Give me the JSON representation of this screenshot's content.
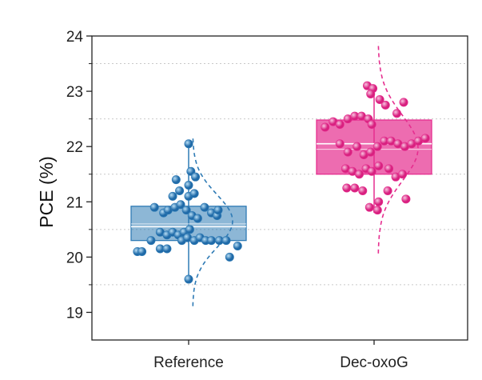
{
  "chart_data": {
    "type": "box",
    "title": "",
    "xlabel": "",
    "ylabel": "PCE (%)",
    "ylim": [
      18.5,
      24
    ],
    "yticks": [
      19,
      20,
      21,
      22,
      23,
      24
    ],
    "ytick_labels": [
      "19",
      "20",
      "21",
      "22",
      "23",
      "24"
    ],
    "grid": "horizontal dotted lines at minor ticks",
    "categories": [
      "Reference",
      "Dec-oxoG"
    ],
    "colors": {
      "Reference": "#2f7bb5",
      "Dec-oxoG": "#e62e8f"
    },
    "series": [
      {
        "category": "Reference",
        "box": {
          "min": 19.6,
          "q1": 20.3,
          "median": 20.55,
          "mean": 20.6,
          "q3": 20.92,
          "max": 22.05
        },
        "points": [
          {
            "x": -0.45,
            "y": 20.1
          },
          {
            "x": -0.41,
            "y": 20.1
          },
          {
            "x": -0.33,
            "y": 20.3
          },
          {
            "x": -0.25,
            "y": 20.15
          },
          {
            "x": -0.19,
            "y": 20.15
          },
          {
            "x": -0.3,
            "y": 20.9
          },
          {
            "x": -0.22,
            "y": 20.8
          },
          {
            "x": -0.18,
            "y": 20.85
          },
          {
            "x": -0.12,
            "y": 20.9
          },
          {
            "x": -0.07,
            "y": 20.95
          },
          {
            "x": -0.02,
            "y": 20.85
          },
          {
            "x": 0.03,
            "y": 20.75
          },
          {
            "x": 0.08,
            "y": 20.7
          },
          {
            "x": 0.14,
            "y": 20.9
          },
          {
            "x": 0.2,
            "y": 20.8
          },
          {
            "x": -0.25,
            "y": 20.45
          },
          {
            "x": -0.19,
            "y": 20.4
          },
          {
            "x": -0.14,
            "y": 20.45
          },
          {
            "x": -0.09,
            "y": 20.4
          },
          {
            "x": -0.04,
            "y": 20.45
          },
          {
            "x": 0.01,
            "y": 20.5
          },
          {
            "x": -0.06,
            "y": 20.3
          },
          {
            "x": -0.01,
            "y": 20.35
          },
          {
            "x": 0.05,
            "y": 20.3
          },
          {
            "x": 0.1,
            "y": 20.35
          },
          {
            "x": 0.15,
            "y": 20.3
          },
          {
            "x": 0.2,
            "y": 20.3
          },
          {
            "x": 0.27,
            "y": 20.3
          },
          {
            "x": 0.33,
            "y": 20.3
          },
          {
            "x": 0.36,
            "y": 20.0
          },
          {
            "x": 0.43,
            "y": 20.2
          },
          {
            "x": -0.14,
            "y": 21.1
          },
          {
            "x": -0.08,
            "y": 21.2
          },
          {
            "x": 0.0,
            "y": 21.1
          },
          {
            "x": 0.05,
            "y": 21.15
          },
          {
            "x": -0.11,
            "y": 21.4
          },
          {
            "x": 0.02,
            "y": 21.55
          },
          {
            "x": 0.06,
            "y": 21.45
          },
          {
            "x": 0.0,
            "y": 21.3
          },
          {
            "x": 0.0,
            "y": 22.05
          },
          {
            "x": 0.0,
            "y": 19.6
          },
          {
            "x": 0.25,
            "y": 20.75
          },
          {
            "x": 0.26,
            "y": 20.85
          }
        ]
      },
      {
        "category": "Dec-oxoG",
        "box": {
          "min": 20.8,
          "q1": 21.5,
          "median": 22.05,
          "mean": 21.95,
          "q3": 22.48,
          "max": 23.1
        },
        "points": [
          {
            "x": -0.43,
            "y": 22.35
          },
          {
            "x": -0.36,
            "y": 22.45
          },
          {
            "x": -0.3,
            "y": 22.4
          },
          {
            "x": -0.23,
            "y": 22.5
          },
          {
            "x": -0.17,
            "y": 22.55
          },
          {
            "x": -0.11,
            "y": 22.55
          },
          {
            "x": -0.05,
            "y": 22.5
          },
          {
            "x": -0.02,
            "y": 22.4
          },
          {
            "x": -0.3,
            "y": 22.05
          },
          {
            "x": -0.23,
            "y": 21.9
          },
          {
            "x": -0.15,
            "y": 22.0
          },
          {
            "x": -0.09,
            "y": 21.85
          },
          {
            "x": -0.03,
            "y": 21.9
          },
          {
            "x": 0.03,
            "y": 22.0
          },
          {
            "x": 0.09,
            "y": 22.1
          },
          {
            "x": 0.15,
            "y": 22.1
          },
          {
            "x": 0.21,
            "y": 22.05
          },
          {
            "x": 0.27,
            "y": 22.0
          },
          {
            "x": 0.33,
            "y": 22.05
          },
          {
            "x": 0.39,
            "y": 22.1
          },
          {
            "x": 0.45,
            "y": 22.15
          },
          {
            "x": -0.25,
            "y": 21.6
          },
          {
            "x": -0.19,
            "y": 21.55
          },
          {
            "x": -0.13,
            "y": 21.5
          },
          {
            "x": -0.07,
            "y": 21.6
          },
          {
            "x": -0.02,
            "y": 21.55
          },
          {
            "x": 0.04,
            "y": 21.65
          },
          {
            "x": 0.13,
            "y": 21.6
          },
          {
            "x": 0.19,
            "y": 21.45
          },
          {
            "x": 0.25,
            "y": 21.5
          },
          {
            "x": -0.24,
            "y": 21.25
          },
          {
            "x": -0.17,
            "y": 21.25
          },
          {
            "x": -0.1,
            "y": 21.2
          },
          {
            "x": 0.04,
            "y": 21.0
          },
          {
            "x": 0.12,
            "y": 21.2
          },
          {
            "x": -0.04,
            "y": 20.9
          },
          {
            "x": 0.03,
            "y": 20.85
          },
          {
            "x": 0.28,
            "y": 21.05
          },
          {
            "x": -0.06,
            "y": 23.1
          },
          {
            "x": -0.01,
            "y": 23.05
          },
          {
            "x": -0.03,
            "y": 22.95
          },
          {
            "x": 0.1,
            "y": 22.75
          },
          {
            "x": 0.26,
            "y": 22.8
          },
          {
            "x": 0.2,
            "y": 22.6
          },
          {
            "x": 0.05,
            "y": 22.85
          }
        ]
      }
    ]
  }
}
